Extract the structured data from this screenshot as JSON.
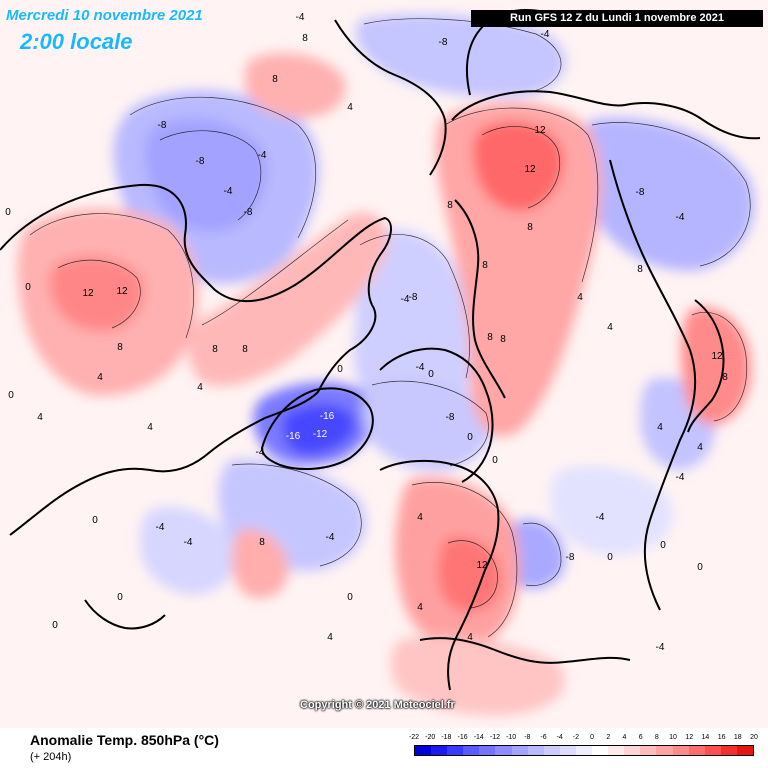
{
  "header": {
    "date": "Mercredi 10 novembre 2021",
    "time": "2:00 locale",
    "run": "Run GFS 12 Z du Lundi 1 novembre 2021"
  },
  "copyright": "Copyright © 2021 Meteociel.fr",
  "footer": {
    "product": "Anomalie Temp. 850hPa (°C)",
    "lead": "(+ 204h)"
  },
  "legend": {
    "labels": [
      "-22",
      "-20",
      "-18",
      "-16",
      "-14",
      "-12",
      "-10",
      "-8",
      "-6",
      "-4",
      "-2",
      "0",
      "2",
      "4",
      "6",
      "8",
      "10",
      "12",
      "14",
      "16",
      "18",
      "20"
    ],
    "colors": [
      "#0000d8",
      "#1a1af0",
      "#3a3aff",
      "#5a5aff",
      "#7474ff",
      "#8c8cff",
      "#a3a3ff",
      "#b8b8ff",
      "#cbcbff",
      "#dcdcff",
      "#eeeeff",
      "#ffffff",
      "#ffeaea",
      "#ffd4d4",
      "#ffbcbc",
      "#ffa3a3",
      "#ff8a8a",
      "#ff6e6e",
      "#ff5050",
      "#f23030",
      "#e61414"
    ]
  },
  "contour_labels": {
    "positive": [
      "12",
      "12",
      "12",
      "12",
      "12",
      "12",
      "8",
      "8",
      "8",
      "8",
      "8",
      "8",
      "8",
      "8",
      "8",
      "8",
      "8",
      "8",
      "8",
      "4",
      "4",
      "4",
      "4",
      "4",
      "4",
      "4",
      "4",
      "4",
      "4",
      "4",
      "4",
      "4"
    ],
    "negative": [
      "-16",
      "-16",
      "-12",
      "-8",
      "-8",
      "-8",
      "-8",
      "-8",
      "-8",
      "-8",
      "-8",
      "-4",
      "-4",
      "-4",
      "-4",
      "-4",
      "-4",
      "-4",
      "-4",
      "-4",
      "-4",
      "-4",
      "-4",
      "-4",
      "-4"
    ],
    "zero": [
      "0",
      "0",
      "0",
      "0",
      "0",
      "0",
      "0",
      "0",
      "0",
      "0",
      "0",
      "0",
      "0",
      "0"
    ]
  }
}
